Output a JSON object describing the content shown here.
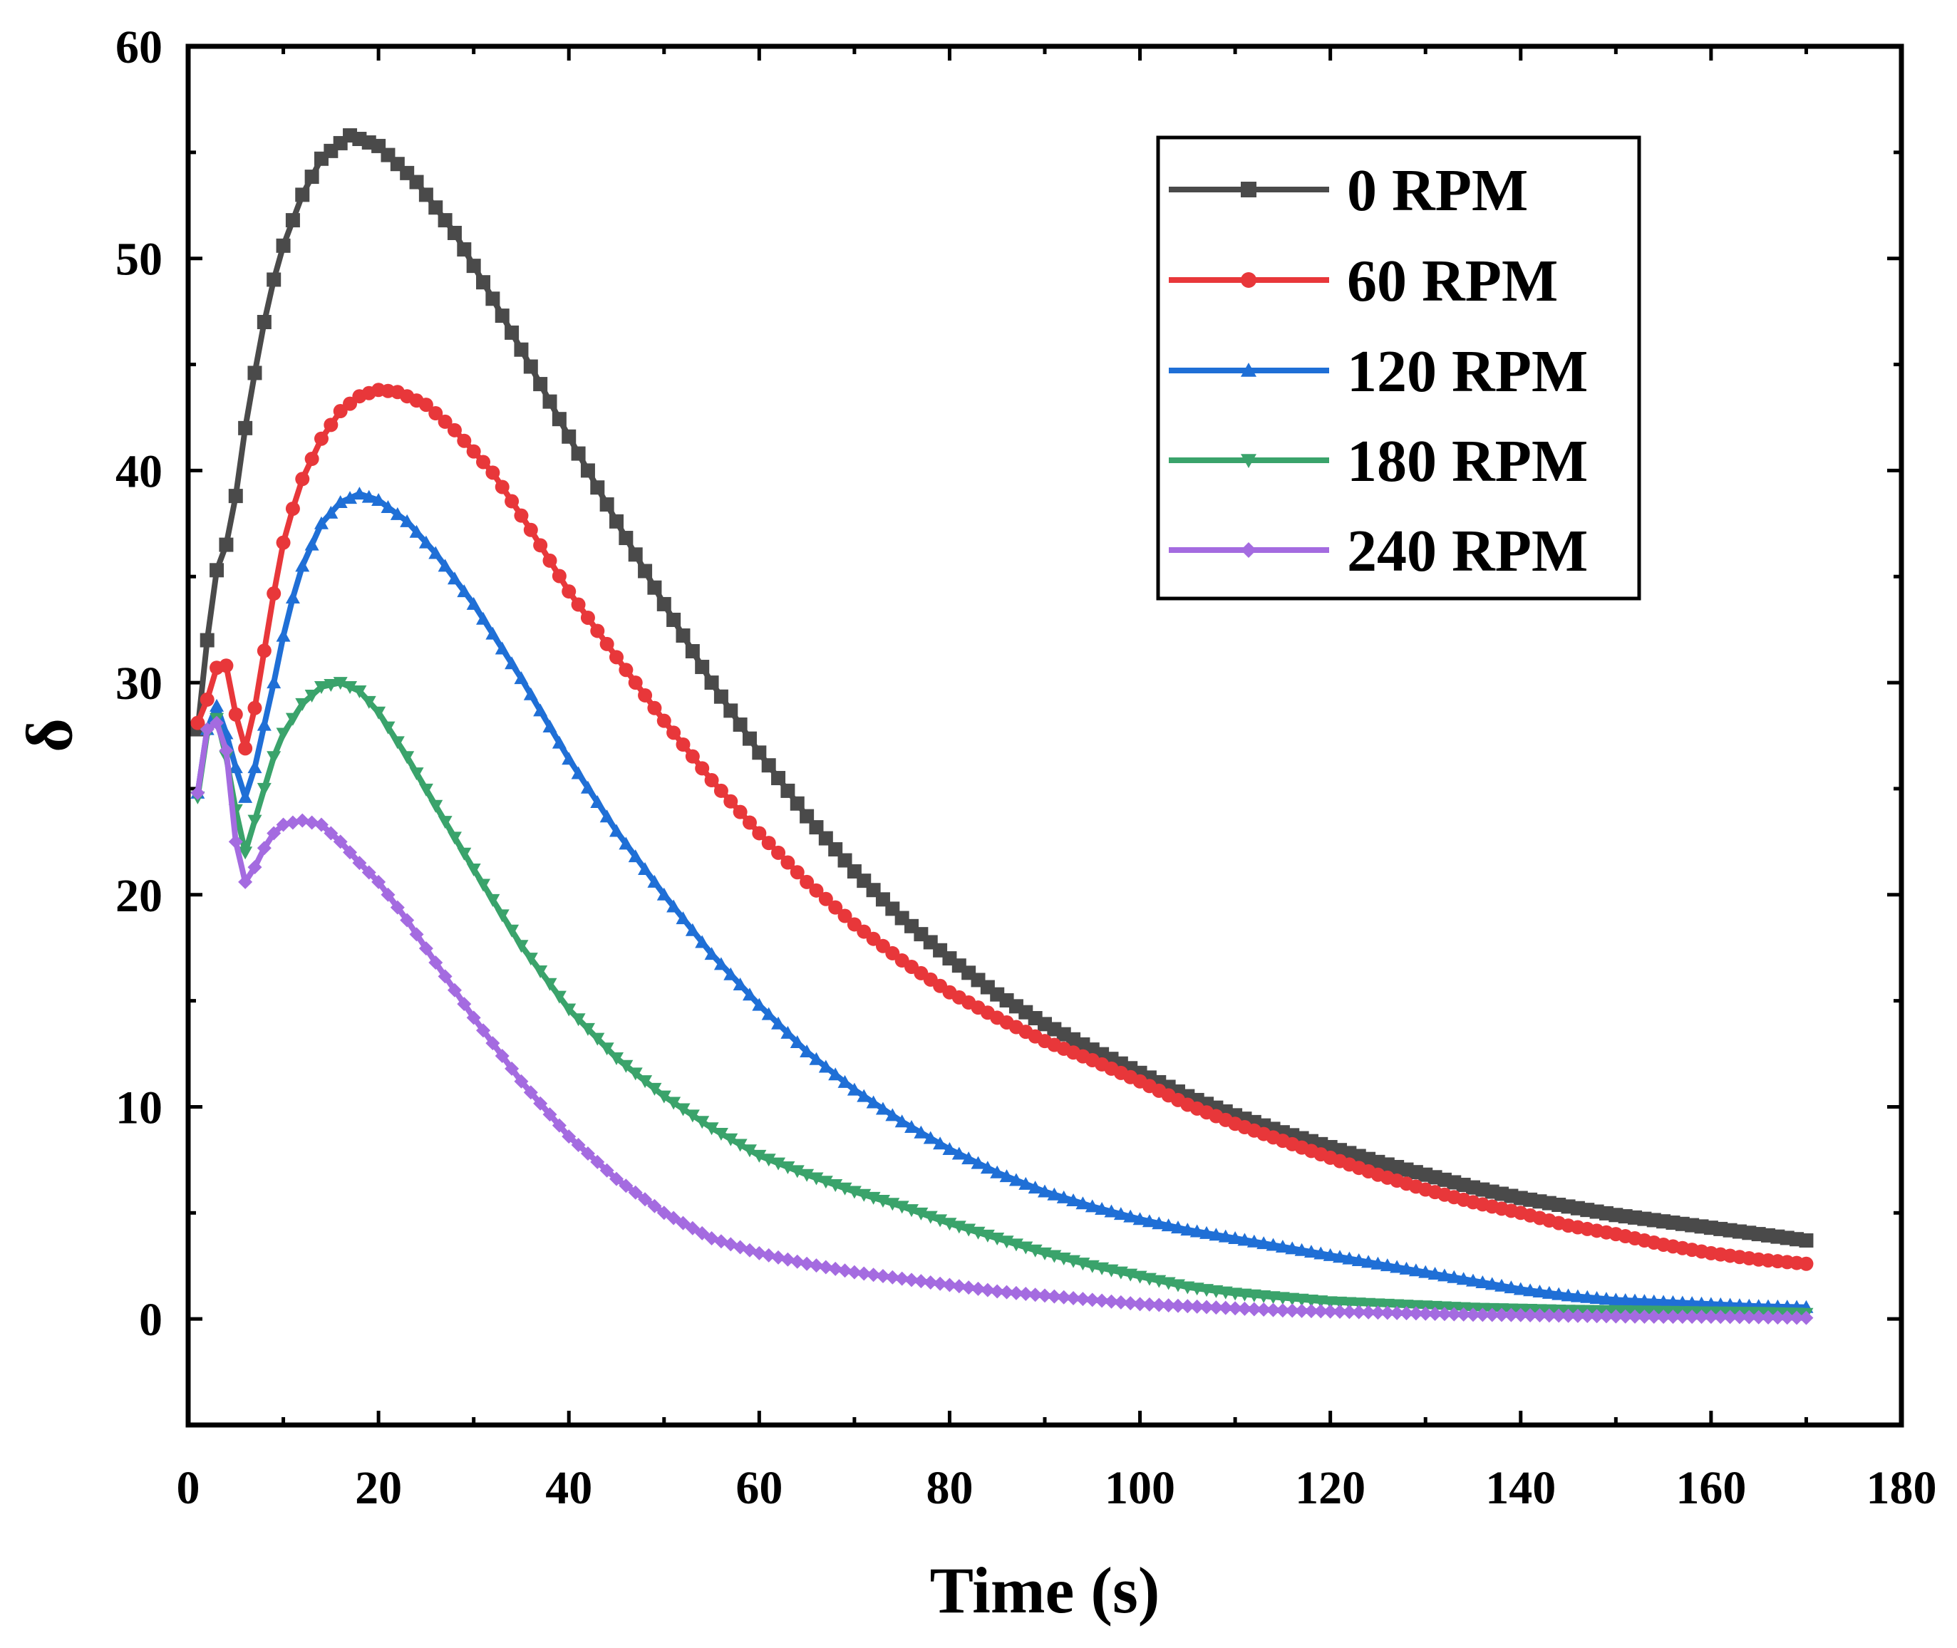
{
  "chart_data": {
    "type": "line",
    "title": "",
    "xlabel": "Time (s)",
    "ylabel": "δ",
    "xlim": [
      0,
      180
    ],
    "ylim": [
      -5,
      60
    ],
    "xticks": [
      0,
      20,
      40,
      60,
      80,
      100,
      120,
      140,
      160,
      180
    ],
    "yticks": [
      0,
      10,
      20,
      30,
      40,
      50,
      60
    ],
    "xtick_labels": [
      "0",
      "20",
      "40",
      "60",
      "80",
      "100",
      "120",
      "140",
      "160",
      "180"
    ],
    "ytick_labels": [
      "0",
      "10",
      "20",
      "30",
      "40",
      "50",
      "60"
    ],
    "legend_position": "top-right",
    "series": [
      {
        "name": "0 RPM",
        "color": "#4a4a4a",
        "marker": "square",
        "points": [
          [
            1,
            27.8
          ],
          [
            2,
            32
          ],
          [
            3,
            35.3
          ],
          [
            4,
            36.5
          ],
          [
            5,
            38.8
          ],
          [
            6,
            42
          ],
          [
            7,
            44.6
          ],
          [
            8,
            47
          ],
          [
            9,
            49
          ],
          [
            10,
            50.6
          ],
          [
            12,
            53
          ],
          [
            14,
            54.7
          ],
          [
            17,
            55.8
          ],
          [
            20,
            55.3
          ],
          [
            24,
            53.6
          ],
          [
            28,
            51.2
          ],
          [
            32,
            48.1
          ],
          [
            36,
            44.9
          ],
          [
            40,
            41.6
          ],
          [
            45,
            37.6
          ],
          [
            50,
            33.7
          ],
          [
            55,
            30
          ],
          [
            60,
            26.7
          ],
          [
            65,
            23.7
          ],
          [
            70,
            21.1
          ],
          [
            75,
            18.9
          ],
          [
            80,
            17
          ],
          [
            85,
            15.3
          ],
          [
            90,
            13.9
          ],
          [
            95,
            12.7
          ],
          [
            100,
            11.6
          ],
          [
            105,
            10.5
          ],
          [
            110,
            9.6
          ],
          [
            115,
            8.8
          ],
          [
            120,
            8.1
          ],
          [
            125,
            7.4
          ],
          [
            130,
            6.8
          ],
          [
            135,
            6.2
          ],
          [
            140,
            5.7
          ],
          [
            145,
            5.3
          ],
          [
            150,
            4.9
          ],
          [
            155,
            4.6
          ],
          [
            160,
            4.3
          ],
          [
            165,
            4
          ],
          [
            170,
            3.7
          ]
        ]
      },
      {
        "name": "60 RPM",
        "color": "#e8373a",
        "marker": "circle",
        "points": [
          [
            1,
            28.1
          ],
          [
            2,
            29.2
          ],
          [
            3,
            30.7
          ],
          [
            4,
            30.8
          ],
          [
            5,
            28.5
          ],
          [
            6,
            26.9
          ],
          [
            7,
            28.8
          ],
          [
            8,
            31.5
          ],
          [
            9,
            34.2
          ],
          [
            10,
            36.6
          ],
          [
            11,
            38.2
          ],
          [
            12,
            39.6
          ],
          [
            14,
            41.5
          ],
          [
            16,
            42.8
          ],
          [
            18,
            43.5
          ],
          [
            20,
            43.8
          ],
          [
            22,
            43.7
          ],
          [
            25,
            43.1
          ],
          [
            28,
            41.9
          ],
          [
            32,
            39.9
          ],
          [
            36,
            37.2
          ],
          [
            40,
            34.3
          ],
          [
            45,
            31.2
          ],
          [
            50,
            28.2
          ],
          [
            55,
            25.4
          ],
          [
            60,
            22.9
          ],
          [
            65,
            20.6
          ],
          [
            70,
            18.6
          ],
          [
            75,
            16.9
          ],
          [
            80,
            15.4
          ],
          [
            85,
            14.2
          ],
          [
            90,
            13.1
          ],
          [
            95,
            12.2
          ],
          [
            100,
            11.2
          ],
          [
            105,
            10.1
          ],
          [
            110,
            9.2
          ],
          [
            115,
            8.4
          ],
          [
            120,
            7.6
          ],
          [
            125,
            6.8
          ],
          [
            130,
            6.1
          ],
          [
            135,
            5.5
          ],
          [
            140,
            5
          ],
          [
            145,
            4.4
          ],
          [
            150,
            4
          ],
          [
            155,
            3.5
          ],
          [
            160,
            3.1
          ],
          [
            165,
            2.8
          ],
          [
            170,
            2.6
          ]
        ]
      },
      {
        "name": "120 RPM",
        "color": "#1f6fd6",
        "marker": "triangle-up",
        "points": [
          [
            1,
            24.8
          ],
          [
            2,
            27.8
          ],
          [
            3,
            28.9
          ],
          [
            4,
            27.6
          ],
          [
            5,
            26
          ],
          [
            6,
            24.6
          ],
          [
            7,
            26
          ],
          [
            8,
            28
          ],
          [
            9,
            30
          ],
          [
            10,
            32.2
          ],
          [
            11,
            34
          ],
          [
            12,
            35.5
          ],
          [
            14,
            37.5
          ],
          [
            16,
            38.5
          ],
          [
            18,
            38.9
          ],
          [
            20,
            38.6
          ],
          [
            23,
            37.6
          ],
          [
            26,
            36.1
          ],
          [
            30,
            33.7
          ],
          [
            35,
            30.2
          ],
          [
            40,
            26.4
          ],
          [
            45,
            23
          ],
          [
            50,
            20
          ],
          [
            55,
            17.2
          ],
          [
            60,
            14.8
          ],
          [
            65,
            12.6
          ],
          [
            70,
            10.8
          ],
          [
            75,
            9.3
          ],
          [
            80,
            8
          ],
          [
            85,
            6.9
          ],
          [
            90,
            6
          ],
          [
            95,
            5.3
          ],
          [
            100,
            4.7
          ],
          [
            105,
            4.2
          ],
          [
            110,
            3.8
          ],
          [
            115,
            3.4
          ],
          [
            120,
            3
          ],
          [
            125,
            2.6
          ],
          [
            130,
            2.2
          ],
          [
            135,
            1.8
          ],
          [
            140,
            1.4
          ],
          [
            145,
            1.1
          ],
          [
            150,
            0.9
          ],
          [
            155,
            0.8
          ],
          [
            160,
            0.7
          ],
          [
            165,
            0.6
          ],
          [
            170,
            0.55
          ]
        ]
      },
      {
        "name": "180 RPM",
        "color": "#3aa36b",
        "marker": "triangle-down",
        "points": [
          [
            1,
            24.6
          ],
          [
            2,
            27.6
          ],
          [
            3,
            28.3
          ],
          [
            4,
            26.5
          ],
          [
            5,
            24
          ],
          [
            6,
            22
          ],
          [
            7,
            23.5
          ],
          [
            8,
            25
          ],
          [
            9,
            26.5
          ],
          [
            10,
            27.6
          ],
          [
            12,
            29
          ],
          [
            14,
            29.8
          ],
          [
            16,
            30
          ],
          [
            18,
            29.6
          ],
          [
            20,
            28.6
          ],
          [
            23,
            26.5
          ],
          [
            26,
            24.2
          ],
          [
            30,
            21.2
          ],
          [
            35,
            17.6
          ],
          [
            40,
            14.6
          ],
          [
            45,
            12.3
          ],
          [
            50,
            10.5
          ],
          [
            55,
            9
          ],
          [
            60,
            7.7
          ],
          [
            65,
            6.8
          ],
          [
            70,
            6
          ],
          [
            75,
            5.3
          ],
          [
            80,
            4.5
          ],
          [
            85,
            3.8
          ],
          [
            90,
            3.1
          ],
          [
            95,
            2.5
          ],
          [
            100,
            2
          ],
          [
            105,
            1.5
          ],
          [
            110,
            1.2
          ],
          [
            115,
            1
          ],
          [
            120,
            0.8
          ],
          [
            125,
            0.7
          ],
          [
            130,
            0.6
          ],
          [
            135,
            0.5
          ],
          [
            140,
            0.45
          ],
          [
            145,
            0.4
          ],
          [
            150,
            0.38
          ],
          [
            155,
            0.35
          ],
          [
            160,
            0.32
          ],
          [
            165,
            0.3
          ],
          [
            170,
            0.25
          ]
        ]
      },
      {
        "name": "240 RPM",
        "color": "#a46be0",
        "marker": "diamond",
        "points": [
          [
            1,
            24.8
          ],
          [
            2,
            27.8
          ],
          [
            3,
            28.1
          ],
          [
            4,
            26.8
          ],
          [
            5,
            22.5
          ],
          [
            6,
            20.6
          ],
          [
            7,
            21.3
          ],
          [
            8,
            22.2
          ],
          [
            9,
            22.9
          ],
          [
            10,
            23.3
          ],
          [
            12,
            23.5
          ],
          [
            14,
            23.3
          ],
          [
            16,
            22.5
          ],
          [
            18,
            21.5
          ],
          [
            20,
            20.6
          ],
          [
            23,
            18.8
          ],
          [
            26,
            16.8
          ],
          [
            30,
            14.2
          ],
          [
            35,
            11.2
          ],
          [
            40,
            8.6
          ],
          [
            45,
            6.6
          ],
          [
            50,
            5
          ],
          [
            55,
            3.8
          ],
          [
            60,
            3.1
          ],
          [
            65,
            2.6
          ],
          [
            70,
            2.2
          ],
          [
            75,
            1.9
          ],
          [
            80,
            1.6
          ],
          [
            85,
            1.3
          ],
          [
            90,
            1.1
          ],
          [
            95,
            0.9
          ],
          [
            100,
            0.7
          ],
          [
            105,
            0.6
          ],
          [
            110,
            0.5
          ],
          [
            115,
            0.4
          ],
          [
            120,
            0.35
          ],
          [
            125,
            0.3
          ],
          [
            130,
            0.25
          ],
          [
            135,
            0.2
          ],
          [
            140,
            0.18
          ],
          [
            145,
            0.15
          ],
          [
            150,
            0.12
          ],
          [
            155,
            0.1
          ],
          [
            160,
            0.1
          ],
          [
            165,
            0.08
          ],
          [
            170,
            0.05
          ]
        ]
      }
    ]
  }
}
